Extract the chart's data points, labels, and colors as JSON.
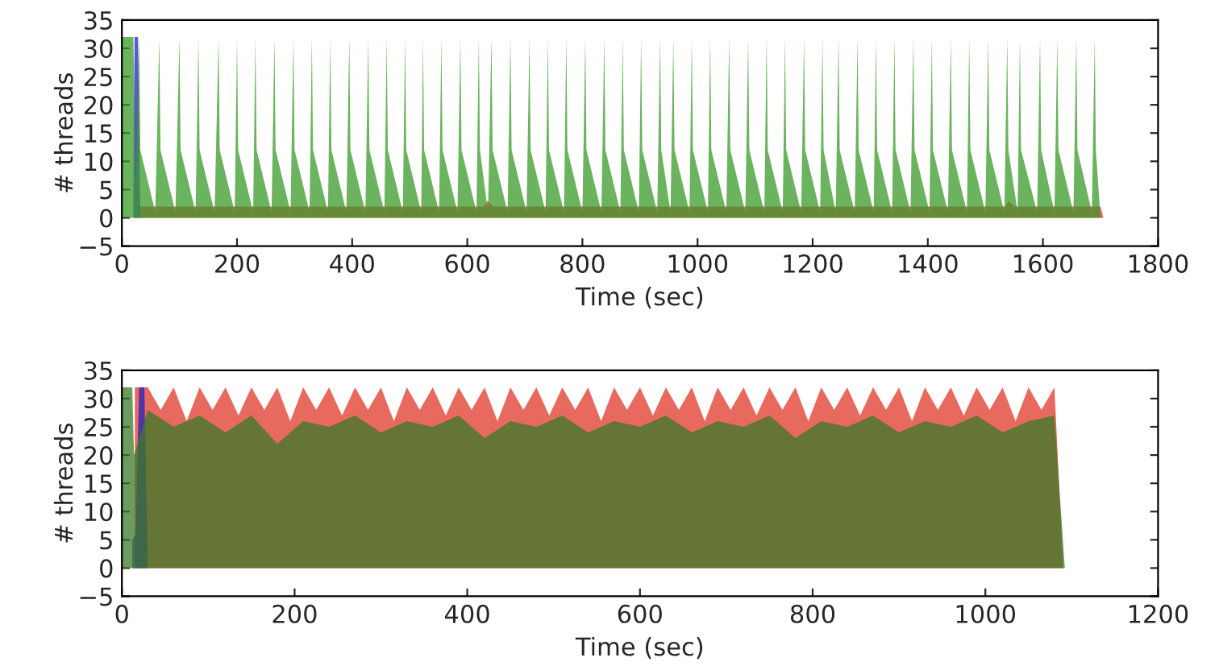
{
  "chart_data": [
    {
      "type": "area",
      "xlabel": "Time (sec)",
      "ylabel": "# threads",
      "xlim": [
        0,
        1800
      ],
      "xticks": [
        0,
        200,
        400,
        600,
        800,
        1000,
        1200,
        1400,
        1600,
        1800
      ],
      "ylim": [
        -5,
        35
      ],
      "yticks": [
        -5,
        0,
        5,
        10,
        15,
        20,
        25,
        30,
        35
      ],
      "grid": false,
      "legend": false,
      "series": [
        {
          "color": "#e03020",
          "x": [
            30,
            630,
            635,
            645,
            1535,
            1540,
            1550,
            1700,
            1705
          ],
          "values": [
            2,
            2,
            3,
            2,
            2,
            3,
            2,
            2,
            0
          ]
        },
        {
          "color": "#2020c0",
          "x": [
            20,
            22,
            28,
            32
          ],
          "values": [
            5,
            32,
            32,
            0
          ]
        },
        {
          "color": "#3a9a2a",
          "x": [
            0,
            20,
            24,
            30,
            32,
            58,
            65,
            67,
            93,
            100,
            102,
            128,
            133,
            135,
            161,
            168,
            170,
            196,
            200,
            202,
            228,
            232,
            234,
            260,
            265,
            267,
            293,
            298,
            300,
            326,
            330,
            332,
            358,
            362,
            364,
            390,
            395,
            397,
            423,
            428,
            430,
            456,
            460,
            462,
            488,
            492,
            494,
            520,
            523,
            525,
            551,
            555,
            557,
            583,
            588,
            590,
            616,
            620,
            622,
            636,
            642,
            644,
            670,
            675,
            677,
            703,
            708,
            710,
            736,
            740,
            742,
            768,
            772,
            774,
            800,
            805,
            807,
            833,
            838,
            840,
            866,
            870,
            872,
            898,
            902,
            904,
            930,
            935,
            937,
            953,
            958,
            960,
            986,
            990,
            992,
            1018,
            1022,
            1024,
            1050,
            1055,
            1057,
            1083,
            1088,
            1090,
            1116,
            1120,
            1122,
            1148,
            1152,
            1154,
            1180,
            1185,
            1187,
            1213,
            1217,
            1219,
            1240,
            1245,
            1247,
            1273,
            1278,
            1280,
            1306,
            1310,
            1312,
            1338,
            1342,
            1344,
            1370,
            1375,
            1377,
            1403,
            1407,
            1409,
            1435,
            1440,
            1442,
            1468,
            1472,
            1474,
            1500,
            1505,
            1507,
            1533,
            1538,
            1540,
            1556,
            1560,
            1562,
            1590,
            1595,
            1597,
            1620,
            1625,
            1627,
            1653,
            1658,
            1660,
            1685,
            1690,
            1692,
            1700
          ],
          "values": [
            32,
            32,
            5,
            32,
            12,
            1,
            32,
            12,
            1,
            32,
            12,
            1,
            32,
            12,
            1,
            32,
            12,
            1,
            32,
            12,
            1,
            32,
            12,
            1,
            32,
            12,
            1,
            32,
            12,
            1,
            32,
            12,
            1,
            32,
            12,
            1,
            32,
            12,
            1,
            32,
            12,
            1,
            32,
            12,
            1,
            32,
            12,
            1,
            32,
            12,
            1,
            32,
            12,
            1,
            32,
            12,
            1,
            32,
            12,
            1,
            32,
            12,
            1,
            32,
            12,
            1,
            32,
            12,
            1,
            32,
            12,
            1,
            32,
            12,
            1,
            32,
            12,
            1,
            32,
            12,
            1,
            32,
            12,
            1,
            32,
            12,
            1,
            32,
            12,
            1,
            32,
            12,
            1,
            32,
            12,
            1,
            32,
            12,
            1,
            32,
            12,
            1,
            32,
            12,
            1,
            32,
            12,
            1,
            32,
            12,
            1,
            32,
            12,
            1,
            32,
            12,
            1,
            32,
            12,
            1,
            32,
            12,
            1,
            32,
            12,
            1,
            32,
            12,
            1,
            32,
            12,
            1,
            32,
            12,
            1,
            32,
            12,
            1,
            32,
            12,
            1,
            32,
            12,
            1,
            32,
            12,
            1,
            32,
            12,
            1,
            32,
            12,
            1,
            32,
            12,
            1,
            32,
            12,
            1,
            32,
            12,
            0
          ]
        }
      ]
    },
    {
      "type": "area",
      "xlabel": "Time (sec)",
      "ylabel": "# threads",
      "xlim": [
        0,
        1200
      ],
      "xticks": [
        0,
        200,
        400,
        600,
        800,
        1000,
        1200
      ],
      "ylim": [
        -5,
        35
      ],
      "yticks": [
        -5,
        0,
        5,
        10,
        15,
        20,
        25,
        30,
        35
      ],
      "grid": false,
      "legend": false,
      "series": [
        {
          "color": "#e03828",
          "x": [
            15,
            30,
            45,
            60,
            75,
            90,
            105,
            120,
            135,
            150,
            165,
            180,
            195,
            210,
            225,
            240,
            255,
            270,
            285,
            300,
            315,
            330,
            345,
            360,
            375,
            390,
            405,
            420,
            435,
            450,
            465,
            480,
            495,
            510,
            525,
            540,
            555,
            570,
            585,
            600,
            615,
            630,
            645,
            660,
            675,
            690,
            705,
            720,
            735,
            750,
            765,
            780,
            795,
            810,
            825,
            840,
            855,
            870,
            885,
            900,
            915,
            930,
            945,
            960,
            975,
            990,
            1005,
            1020,
            1035,
            1050,
            1065,
            1080,
            1090
          ],
          "values": [
            32,
            32,
            28,
            32,
            26,
            32,
            28,
            32,
            27,
            32,
            28,
            32,
            26,
            32,
            28,
            32,
            27,
            32,
            28,
            32,
            26,
            32,
            28,
            32,
            27,
            32,
            28,
            32,
            26,
            32,
            28,
            32,
            27,
            32,
            28,
            32,
            26,
            32,
            28,
            32,
            27,
            32,
            28,
            32,
            26,
            32,
            28,
            32,
            27,
            32,
            28,
            32,
            26,
            32,
            28,
            32,
            27,
            32,
            28,
            32,
            26,
            32,
            28,
            32,
            27,
            32,
            28,
            32,
            26,
            32,
            28,
            32,
            0
          ]
        },
        {
          "color": "#2020c0",
          "x": [
            12,
            16,
            20,
            26,
            30
          ],
          "values": [
            5,
            6,
            32,
            32,
            0
          ]
        },
        {
          "color": "#3a7a28",
          "x": [
            0,
            12,
            14,
            30,
            60,
            90,
            120,
            150,
            180,
            210,
            240,
            270,
            300,
            330,
            360,
            390,
            420,
            450,
            480,
            510,
            540,
            570,
            600,
            630,
            660,
            690,
            720,
            750,
            780,
            810,
            840,
            870,
            900,
            930,
            960,
            990,
            1020,
            1050,
            1080,
            1092
          ],
          "values": [
            32,
            32,
            20,
            28,
            25,
            27,
            24,
            27,
            22,
            26,
            25,
            27,
            24,
            26,
            25,
            27,
            23,
            26,
            25,
            27,
            24,
            26,
            25,
            27,
            24,
            26,
            25,
            27,
            23,
            26,
            25,
            27,
            24,
            26,
            25,
            27,
            24,
            26,
            27,
            0
          ]
        }
      ]
    }
  ]
}
